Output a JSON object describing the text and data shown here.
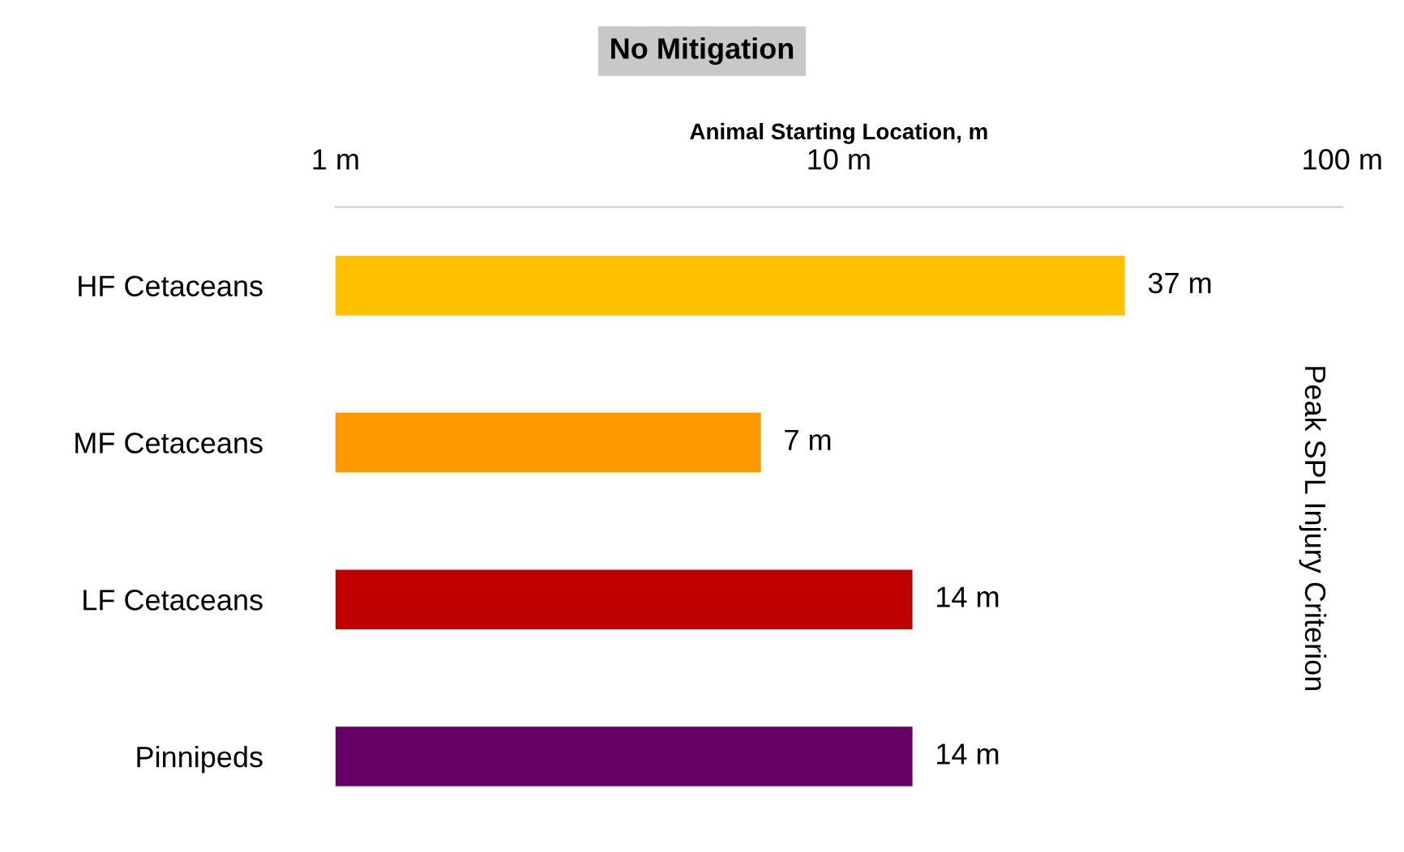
{
  "chart_data": {
    "type": "bar",
    "orientation": "horizontal",
    "title": "No Mitigation",
    "xlabel": "Animal Starting Location, m",
    "y2label": "Peak SPL Injury Criterion",
    "categories": [
      "HF Cetaceans",
      "MF Cetaceans",
      "LF Cetaceans",
      "Pinnipeds"
    ],
    "values": [
      37,
      7,
      14,
      14
    ],
    "colors": [
      "#ffc000",
      "#ff9900",
      "#c00000",
      "#660066"
    ],
    "value_labels": [
      "37 m",
      "7 m",
      "14 m",
      "14 m"
    ],
    "log": "x",
    "xlim": [
      1,
      100
    ],
    "xticks": [
      {
        "value": 1,
        "label": "1 m"
      },
      {
        "value": 10,
        "label": "10 m"
      },
      {
        "value": 100,
        "label": "100 m"
      }
    ],
    "grid": false,
    "legend": false
  }
}
